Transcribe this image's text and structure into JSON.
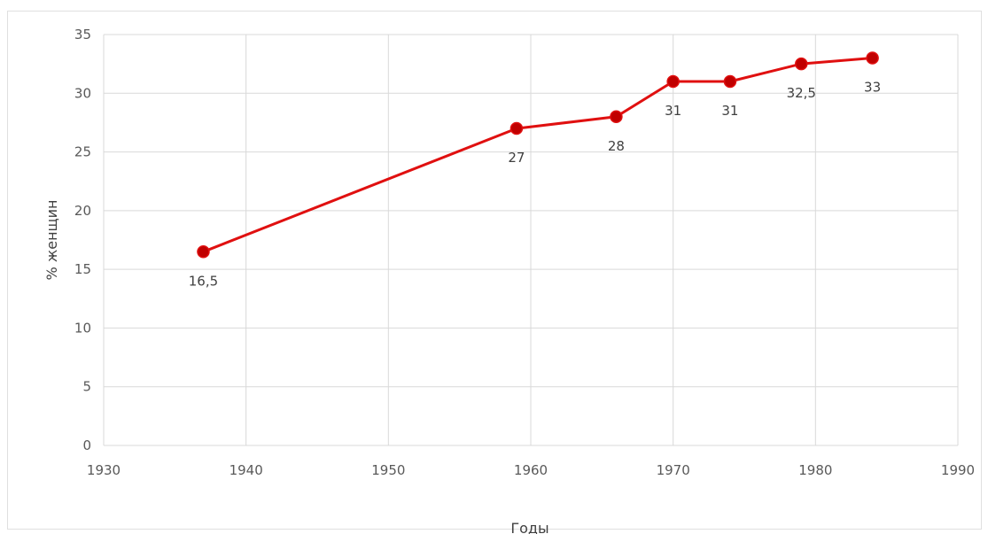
{
  "chart_data": {
    "type": "scatter",
    "xlabel": "Годы",
    "ylabel": "% женщин",
    "xlim": [
      1930,
      1990
    ],
    "ylim": [
      0,
      35
    ],
    "xticks": [
      1930,
      1940,
      1950,
      1960,
      1970,
      1980,
      1990
    ],
    "yticks": [
      0,
      5,
      10,
      15,
      20,
      25,
      30,
      35
    ],
    "grid": true,
    "color": "#e01010",
    "marker_color": "#c00000",
    "series": [
      {
        "x": [
          1937,
          1959,
          1966,
          1970,
          1974,
          1979,
          1984
        ],
        "y": [
          16.5,
          27,
          28,
          31,
          31,
          32.5,
          33
        ],
        "labels": [
          "16,5",
          "27",
          "28",
          "31",
          "31",
          "32,5",
          "33"
        ]
      }
    ]
  }
}
